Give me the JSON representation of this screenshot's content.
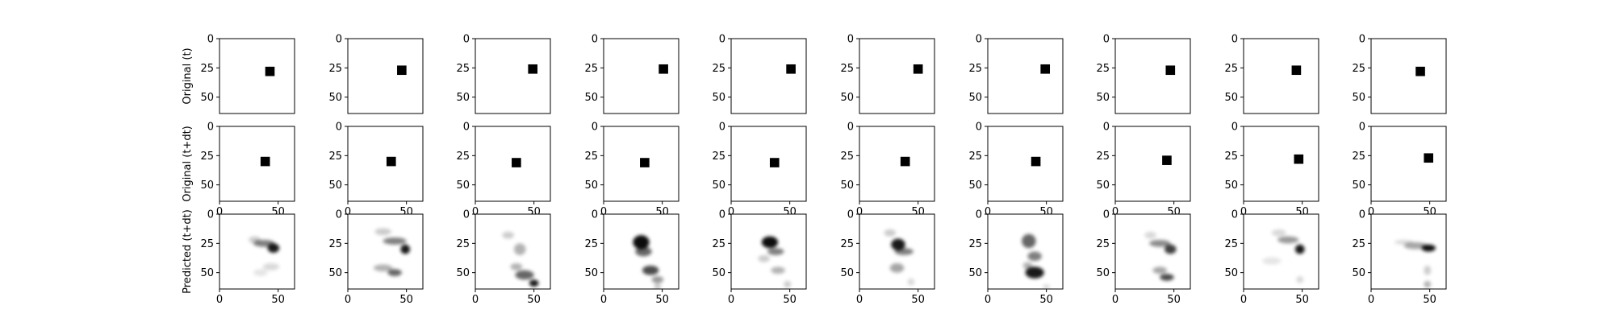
{
  "chart_data": {
    "type": "heatmap",
    "rows": 3,
    "cols": 10,
    "image_size": 64,
    "colormap": "gray_r",
    "axis_range": [
      0,
      64
    ],
    "xticks": [
      0,
      50
    ],
    "yticks": [
      0,
      25,
      50
    ],
    "xtick_labels": [
      "0",
      "50"
    ],
    "ytick_labels": [
      "0",
      "25",
      "50"
    ],
    "row_labels": [
      "Original (t)",
      "Original (t+dt)",
      "Predicted (t+dt)"
    ],
    "x_axis_visible_rows": [
      1,
      2
    ],
    "original_t_squares": [
      {
        "x": 43,
        "y": 28
      },
      {
        "x": 46,
        "y": 27
      },
      {
        "x": 49,
        "y": 26
      },
      {
        "x": 51,
        "y": 26
      },
      {
        "x": 51,
        "y": 26
      },
      {
        "x": 50,
        "y": 26
      },
      {
        "x": 49,
        "y": 26
      },
      {
        "x": 47,
        "y": 27
      },
      {
        "x": 45,
        "y": 27
      },
      {
        "x": 42,
        "y": 28
      }
    ],
    "original_tdt_squares": [
      {
        "x": 39,
        "y": 30
      },
      {
        "x": 37,
        "y": 30
      },
      {
        "x": 35,
        "y": 31
      },
      {
        "x": 35,
        "y": 31
      },
      {
        "x": 37,
        "y": 31
      },
      {
        "x": 39,
        "y": 30
      },
      {
        "x": 41,
        "y": 30
      },
      {
        "x": 44,
        "y": 29
      },
      {
        "x": 47,
        "y": 28
      },
      {
        "x": 49,
        "y": 27
      }
    ],
    "square_size": 8,
    "predicted_blobs": [
      [
        {
          "x": 46,
          "y": 29,
          "rx": 5,
          "ry": 4,
          "a": 0.9
        },
        {
          "x": 38,
          "y": 25,
          "rx": 9,
          "ry": 3,
          "a": 0.5
        },
        {
          "x": 30,
          "y": 22,
          "rx": 5,
          "ry": 3,
          "a": 0.2
        },
        {
          "x": 44,
          "y": 45,
          "rx": 7,
          "ry": 3,
          "a": 0.15
        },
        {
          "x": 35,
          "y": 50,
          "rx": 6,
          "ry": 3,
          "a": 0.1
        }
      ],
      [
        {
          "x": 49,
          "y": 30,
          "rx": 4,
          "ry": 4,
          "a": 0.9
        },
        {
          "x": 40,
          "y": 23,
          "rx": 10,
          "ry": 3,
          "a": 0.5
        },
        {
          "x": 30,
          "y": 15,
          "rx": 7,
          "ry": 3,
          "a": 0.2
        },
        {
          "x": 40,
          "y": 50,
          "rx": 6,
          "ry": 3,
          "a": 0.6
        },
        {
          "x": 30,
          "y": 46,
          "rx": 8,
          "ry": 3,
          "a": 0.3
        }
      ],
      [
        {
          "x": 50,
          "y": 59,
          "rx": 4,
          "ry": 3,
          "a": 0.9
        },
        {
          "x": 42,
          "y": 52,
          "rx": 8,
          "ry": 4,
          "a": 0.6
        },
        {
          "x": 35,
          "y": 45,
          "rx": 5,
          "ry": 3,
          "a": 0.3
        },
        {
          "x": 38,
          "y": 30,
          "rx": 5,
          "ry": 5,
          "a": 0.3
        },
        {
          "x": 28,
          "y": 18,
          "rx": 5,
          "ry": 3,
          "a": 0.2
        }
      ],
      [
        {
          "x": 32,
          "y": 24,
          "rx": 7,
          "ry": 6,
          "a": 0.95
        },
        {
          "x": 34,
          "y": 32,
          "rx": 7,
          "ry": 4,
          "a": 0.6
        },
        {
          "x": 40,
          "y": 48,
          "rx": 7,
          "ry": 4,
          "a": 0.7
        },
        {
          "x": 46,
          "y": 56,
          "rx": 5,
          "ry": 3,
          "a": 0.4
        },
        {
          "x": 46,
          "y": 62,
          "rx": 3,
          "ry": 3,
          "a": 0.2
        }
      ],
      [
        {
          "x": 33,
          "y": 24,
          "rx": 7,
          "ry": 5,
          "a": 0.95
        },
        {
          "x": 38,
          "y": 32,
          "rx": 7,
          "ry": 3,
          "a": 0.5
        },
        {
          "x": 28,
          "y": 38,
          "rx": 5,
          "ry": 3,
          "a": 0.2
        },
        {
          "x": 40,
          "y": 48,
          "rx": 6,
          "ry": 3,
          "a": 0.3
        },
        {
          "x": 48,
          "y": 60,
          "rx": 3,
          "ry": 3,
          "a": 0.2
        }
      ],
      [
        {
          "x": 33,
          "y": 26,
          "rx": 6,
          "ry": 5,
          "a": 0.9
        },
        {
          "x": 38,
          "y": 32,
          "rx": 8,
          "ry": 3,
          "a": 0.5
        },
        {
          "x": 26,
          "y": 16,
          "rx": 5,
          "ry": 3,
          "a": 0.2
        },
        {
          "x": 32,
          "y": 46,
          "rx": 6,
          "ry": 4,
          "a": 0.35
        },
        {
          "x": 44,
          "y": 58,
          "rx": 3,
          "ry": 3,
          "a": 0.15
        }
      ],
      [
        {
          "x": 35,
          "y": 23,
          "rx": 6,
          "ry": 6,
          "a": 0.6
        },
        {
          "x": 40,
          "y": 50,
          "rx": 8,
          "ry": 5,
          "a": 0.9
        },
        {
          "x": 40,
          "y": 36,
          "rx": 6,
          "ry": 4,
          "a": 0.5
        },
        {
          "x": 34,
          "y": 44,
          "rx": 4,
          "ry": 3,
          "a": 0.3
        },
        {
          "x": 50,
          "y": 62,
          "rx": 3,
          "ry": 2,
          "a": 0.15
        }
      ],
      [
        {
          "x": 47,
          "y": 30,
          "rx": 5,
          "ry": 4,
          "a": 0.75
        },
        {
          "x": 38,
          "y": 25,
          "rx": 9,
          "ry": 3,
          "a": 0.45
        },
        {
          "x": 44,
          "y": 54,
          "rx": 6,
          "ry": 3,
          "a": 0.7
        },
        {
          "x": 38,
          "y": 48,
          "rx": 6,
          "ry": 3,
          "a": 0.35
        },
        {
          "x": 30,
          "y": 18,
          "rx": 5,
          "ry": 3,
          "a": 0.15
        }
      ],
      [
        {
          "x": 48,
          "y": 30,
          "rx": 4,
          "ry": 4,
          "a": 0.9
        },
        {
          "x": 38,
          "y": 22,
          "rx": 9,
          "ry": 3,
          "a": 0.4
        },
        {
          "x": 30,
          "y": 16,
          "rx": 6,
          "ry": 3,
          "a": 0.15
        },
        {
          "x": 24,
          "y": 40,
          "rx": 8,
          "ry": 3,
          "a": 0.1
        },
        {
          "x": 48,
          "y": 56,
          "rx": 3,
          "ry": 3,
          "a": 0.15
        }
      ],
      [
        {
          "x": 49,
          "y": 29,
          "rx": 6,
          "ry": 3,
          "a": 0.95
        },
        {
          "x": 38,
          "y": 27,
          "rx": 10,
          "ry": 3,
          "a": 0.35
        },
        {
          "x": 28,
          "y": 24,
          "rx": 8,
          "ry": 2,
          "a": 0.15
        },
        {
          "x": 48,
          "y": 48,
          "rx": 3,
          "ry": 4,
          "a": 0.2
        },
        {
          "x": 48,
          "y": 60,
          "rx": 3,
          "ry": 3,
          "a": 0.3
        }
      ]
    ]
  }
}
